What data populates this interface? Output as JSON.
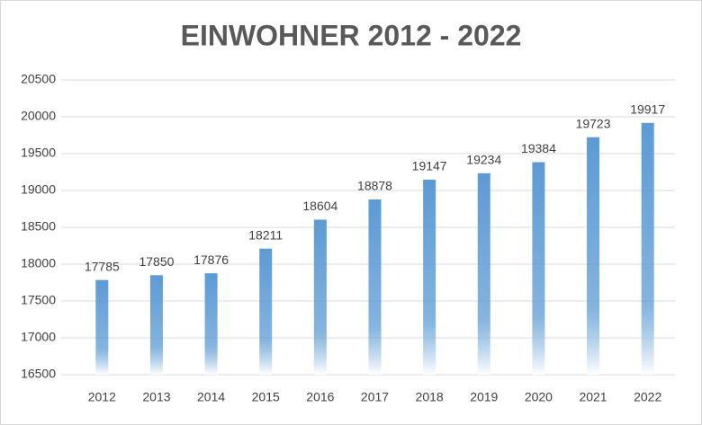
{
  "chart_data": {
    "type": "bar",
    "title": "EINWOHNER 2012 - 2022",
    "categories": [
      "2012",
      "2013",
      "2014",
      "2015",
      "2016",
      "2017",
      "2018",
      "2019",
      "2020",
      "2021",
      "2022"
    ],
    "values": [
      17785,
      17850,
      17876,
      18211,
      18604,
      18878,
      19147,
      19234,
      19384,
      19723,
      19917
    ],
    "color": "#5b9bd5",
    "ylim": [
      16500,
      20500
    ],
    "yticks": [
      16500,
      17000,
      17500,
      18000,
      18500,
      19000,
      19500,
      20000,
      20500
    ],
    "grid": true
  }
}
